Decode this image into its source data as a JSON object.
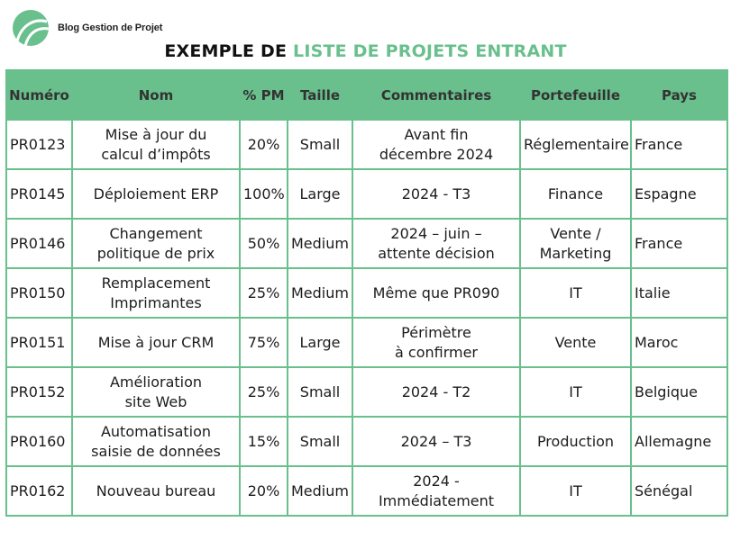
{
  "brand": {
    "name": "Blog Gestion de Projet",
    "color": "#69c08c"
  },
  "title": {
    "part1": "EXEMPLE DE ",
    "part2": "LISTE DE PROJETS ENTRANT"
  },
  "table": {
    "headers": [
      "Numéro",
      "Nom",
      "% PM",
      "Taille",
      "Commentaires",
      "Portefeuille",
      "Pays"
    ],
    "rows": [
      [
        "PR0123",
        "Mise à jour du\ncalcul d’impôts",
        "20%",
        "Small",
        "Avant fin\ndécembre 2024",
        "Réglementaire",
        "France"
      ],
      [
        "PR0145",
        "Déploiement ERP",
        "100%",
        "Large",
        "2024 - T3",
        "Finance",
        "Espagne"
      ],
      [
        "PR0146",
        "Changement\npolitique de prix",
        "50%",
        "Medium",
        "2024 – juin –\nattente décision",
        "Vente /\nMarketing",
        "France"
      ],
      [
        "PR0150",
        "Remplacement\nImprimantes",
        "25%",
        "Medium",
        "Même que PR090",
        "IT",
        "Italie"
      ],
      [
        "PR0151",
        "Mise à jour CRM",
        "75%",
        "Large",
        "Périmètre\nà confirmer",
        "Vente",
        "Maroc"
      ],
      [
        "PR0152",
        "Amélioration\nsite Web",
        "25%",
        "Small",
        "2024 - T2",
        "IT",
        "Belgique"
      ],
      [
        "PR0160",
        "Automatisation\nsaisie de données",
        "15%",
        "Small",
        "2024 – T3",
        "Production",
        "Allemagne"
      ],
      [
        "PR0162",
        "Nouveau bureau",
        "20%",
        "Medium",
        "2024 -\nImmédiatement",
        "IT",
        "Sénégal"
      ]
    ]
  }
}
